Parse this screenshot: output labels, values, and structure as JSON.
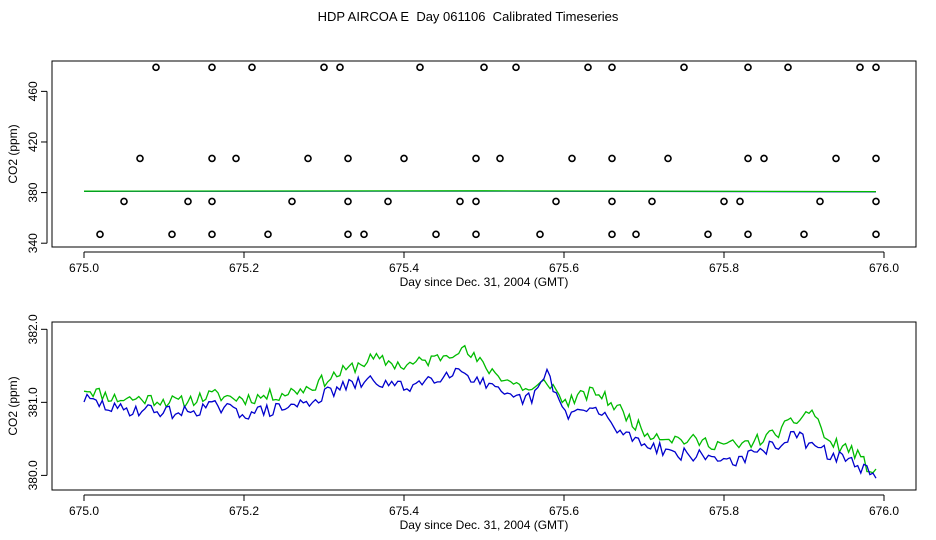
{
  "title": "HDP AIRCOA E  Day 061106  Calibrated Timeseries",
  "colors": {
    "blue": "#0000cc",
    "green": "#00bb00",
    "axis": "#000000"
  },
  "chart_data": [
    {
      "type": "scatter",
      "xlabel": "Day since Dec. 31, 2004 (GMT)",
      "ylabel": "CO2 (ppm)",
      "xlim": [
        674.96,
        676.04
      ],
      "ylim": [
        337,
        484
      ],
      "x_ticks": [
        "675.0",
        "675.2",
        "675.4",
        "675.6",
        "675.8",
        "676.0"
      ],
      "y_ticks": [
        "340",
        "380",
        "420",
        "460"
      ],
      "grid": false,
      "points": [
        [
          675.09,
          479
        ],
        [
          675.16,
          479
        ],
        [
          675.21,
          479
        ],
        [
          675.3,
          479
        ],
        [
          675.32,
          479
        ],
        [
          675.42,
          479
        ],
        [
          675.5,
          479
        ],
        [
          675.54,
          479
        ],
        [
          675.63,
          479
        ],
        [
          675.66,
          479
        ],
        [
          675.75,
          479
        ],
        [
          675.83,
          479
        ],
        [
          675.88,
          479
        ],
        [
          675.97,
          479
        ],
        [
          675.99,
          479
        ],
        [
          675.07,
          407
        ],
        [
          675.16,
          407
        ],
        [
          675.19,
          407
        ],
        [
          675.28,
          407
        ],
        [
          675.33,
          407
        ],
        [
          675.4,
          407
        ],
        [
          675.49,
          407
        ],
        [
          675.52,
          407
        ],
        [
          675.61,
          407
        ],
        [
          675.66,
          407
        ],
        [
          675.73,
          407
        ],
        [
          675.83,
          407
        ],
        [
          675.85,
          407
        ],
        [
          675.94,
          407
        ],
        [
          675.99,
          407
        ],
        [
          675.05,
          373
        ],
        [
          675.13,
          373
        ],
        [
          675.16,
          373
        ],
        [
          675.26,
          373
        ],
        [
          675.33,
          373
        ],
        [
          675.38,
          373
        ],
        [
          675.47,
          373
        ],
        [
          675.49,
          373
        ],
        [
          675.59,
          373
        ],
        [
          675.66,
          373
        ],
        [
          675.71,
          373
        ],
        [
          675.8,
          373
        ],
        [
          675.82,
          373
        ],
        [
          675.92,
          373
        ],
        [
          675.99,
          373
        ],
        [
          675.02,
          347
        ],
        [
          675.11,
          347
        ],
        [
          675.16,
          347
        ],
        [
          675.23,
          347
        ],
        [
          675.33,
          347
        ],
        [
          675.35,
          347
        ],
        [
          675.44,
          347
        ],
        [
          675.49,
          347
        ],
        [
          675.57,
          347
        ],
        [
          675.66,
          347
        ],
        [
          675.69,
          347
        ],
        [
          675.78,
          347
        ],
        [
          675.83,
          347
        ],
        [
          675.9,
          347
        ],
        [
          675.99,
          347
        ]
      ],
      "series": [
        {
          "color": "blue",
          "values": [
            [
              675.0,
              381.0
            ],
            [
              675.5,
              381.2
            ],
            [
              675.99,
              380.6
            ]
          ]
        },
        {
          "color": "green",
          "values": [
            [
              675.0,
              381.1
            ],
            [
              675.5,
              381.4
            ],
            [
              675.99,
              380.8
            ]
          ]
        }
      ]
    },
    {
      "type": "line",
      "xlabel": "Day since Dec. 31, 2004 (GMT)",
      "ylabel": "CO2 (ppm)",
      "xlim": [
        674.96,
        676.04
      ],
      "ylim": [
        379.8,
        382.1
      ],
      "x_ticks": [
        "675.0",
        "675.2",
        "675.4",
        "675.6",
        "675.8",
        "676.0"
      ],
      "y_ticks": [
        "380.0",
        "381.0",
        "382.0"
      ],
      "grid": false,
      "x_range": [
        675.0,
        675.99
      ],
      "series": [
        {
          "color": "green",
          "keypoints": [
            [
              675.0,
              381.2
            ],
            [
              675.04,
              381.05
            ],
            [
              675.08,
              381.05
            ],
            [
              675.12,
              381.0
            ],
            [
              675.16,
              381.1
            ],
            [
              675.2,
              381.05
            ],
            [
              675.24,
              381.1
            ],
            [
              675.28,
              381.2
            ],
            [
              675.32,
              381.4
            ],
            [
              675.36,
              381.6
            ],
            [
              675.4,
              381.5
            ],
            [
              675.44,
              381.6
            ],
            [
              675.47,
              381.75
            ],
            [
              675.5,
              381.5
            ],
            [
              675.53,
              381.3
            ],
            [
              675.56,
              381.15
            ],
            [
              675.58,
              381.3
            ],
            [
              675.6,
              381.0
            ],
            [
              675.64,
              381.15
            ],
            [
              675.67,
              380.9
            ],
            [
              675.7,
              380.6
            ],
            [
              675.74,
              380.5
            ],
            [
              675.78,
              380.45
            ],
            [
              675.82,
              380.4
            ],
            [
              675.86,
              380.55
            ],
            [
              675.89,
              380.75
            ],
            [
              675.91,
              380.9
            ],
            [
              675.93,
              380.45
            ],
            [
              675.96,
              380.35
            ],
            [
              675.99,
              380.0
            ]
          ],
          "noise": 0.09,
          "seed": 11
        },
        {
          "color": "blue",
          "keypoints": [
            [
              675.0,
              381.05
            ],
            [
              675.04,
              380.9
            ],
            [
              675.08,
              380.9
            ],
            [
              675.12,
              380.85
            ],
            [
              675.16,
              380.95
            ],
            [
              675.2,
              380.85
            ],
            [
              675.24,
              380.9
            ],
            [
              675.28,
              381.0
            ],
            [
              675.32,
              381.2
            ],
            [
              675.36,
              381.3
            ],
            [
              675.4,
              381.2
            ],
            [
              675.44,
              381.35
            ],
            [
              675.47,
              381.45
            ],
            [
              675.5,
              381.25
            ],
            [
              675.53,
              381.05
            ],
            [
              675.56,
              381.05
            ],
            [
              675.58,
              381.4
            ],
            [
              675.6,
              380.85
            ],
            [
              675.64,
              380.9
            ],
            [
              675.67,
              380.6
            ],
            [
              675.7,
              380.45
            ],
            [
              675.74,
              380.3
            ],
            [
              675.78,
              380.25
            ],
            [
              675.82,
              380.2
            ],
            [
              675.86,
              380.4
            ],
            [
              675.89,
              380.55
            ],
            [
              675.91,
              380.4
            ],
            [
              675.93,
              380.3
            ],
            [
              675.96,
              380.2
            ],
            [
              675.99,
              379.95
            ]
          ],
          "noise": 0.09,
          "seed": 29
        }
      ]
    }
  ]
}
